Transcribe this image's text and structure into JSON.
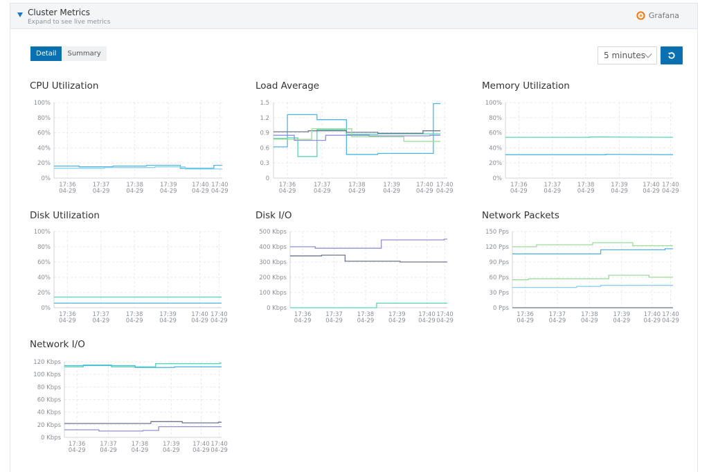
{
  "header": {
    "title": "Cluster Metrics",
    "subtitle": "Expand to see live metrics",
    "brand": "Grafana"
  },
  "tabs": [
    {
      "label": "Detail",
      "active": true
    },
    {
      "label": "Summary",
      "active": false
    }
  ],
  "time_range": {
    "selected": "5 minutes"
  },
  "colors": {
    "accent": "#0a70b0",
    "series_blue": "#4fb6e0",
    "series_teal": "#55d6b8",
    "series_green": "#9edb9a",
    "series_purple": "#8f8fd8",
    "series_slate": "#6b7490",
    "series_lightblue": "#8fd1ec"
  },
  "x_ticks": [
    {
      "time": "17:36",
      "date": "04-29"
    },
    {
      "time": "17:37",
      "date": "04-29"
    },
    {
      "time": "17:38",
      "date": "04-29"
    },
    {
      "time": "17:39",
      "date": "04-29"
    },
    {
      "time": "17:40",
      "date": "04-29"
    },
    {
      "time": "17:40",
      "date": "04-29"
    }
  ],
  "chart_data": [
    {
      "id": "cpu",
      "title": "CPU Utilization",
      "type": "line",
      "y_ticks": [
        "100%",
        "80%",
        "60%",
        "40%",
        "20%",
        "0%"
      ],
      "ylim": [
        0,
        100
      ],
      "series": [
        {
          "color": "#4fb6e0",
          "points": [
            [
              0,
              16
            ],
            [
              0.15,
              16
            ],
            [
              0.15,
              15
            ],
            [
              0.35,
              15
            ],
            [
              0.35,
              16
            ],
            [
              0.55,
              16
            ],
            [
              0.55,
              17
            ],
            [
              0.75,
              17
            ],
            [
              0.75,
              13
            ],
            [
              0.95,
              13
            ],
            [
              0.95,
              17
            ],
            [
              1,
              17
            ]
          ]
        },
        {
          "color": "#8fd1ec",
          "points": [
            [
              0,
              13
            ],
            [
              0.3,
              13
            ],
            [
              0.3,
              14
            ],
            [
              0.6,
              14
            ],
            [
              0.6,
              15
            ],
            [
              0.78,
              15
            ],
            [
              0.78,
              12
            ],
            [
              1,
              12
            ]
          ]
        }
      ]
    },
    {
      "id": "load",
      "title": "Load Average",
      "type": "line",
      "y_ticks": [
        "1.5",
        "1.2",
        "0.9",
        "0.6",
        "0.3",
        "0"
      ],
      "ylim": [
        0,
        1.5
      ],
      "series": [
        {
          "color": "#4fb6e0",
          "points": [
            [
              0,
              0.62
            ],
            [
              0.08,
              0.62
            ],
            [
              0.08,
              1.26
            ],
            [
              0.14,
              1.26
            ],
            [
              0.14,
              1.26
            ],
            [
              0.25,
              1.26
            ],
            [
              0.25,
              1.16
            ],
            [
              0.37,
              1.16
            ],
            [
              0.37,
              1.16
            ],
            [
              0.42,
              1.16
            ],
            [
              0.42,
              0.47
            ],
            [
              0.6,
              0.47
            ],
            [
              0.6,
              0.49
            ],
            [
              0.92,
              0.49
            ],
            [
              0.92,
              1.48
            ],
            [
              0.96,
              1.48
            ]
          ]
        },
        {
          "color": "#55d6b8",
          "points": [
            [
              0,
              0.79
            ],
            [
              0.08,
              0.79
            ],
            [
              0.08,
              0.8
            ],
            [
              0.14,
              0.8
            ],
            [
              0.14,
              0.43
            ],
            [
              0.25,
              0.43
            ],
            [
              0.25,
              0.96
            ],
            [
              0.42,
              0.96
            ],
            [
              0.42,
              0.87
            ],
            [
              0.6,
              0.87
            ],
            [
              0.6,
              0.88
            ],
            [
              0.96,
              0.88
            ]
          ]
        },
        {
          "color": "#6b7490",
          "points": [
            [
              0,
              0.92
            ],
            [
              0.2,
              0.92
            ],
            [
              0.2,
              0.94
            ],
            [
              0.42,
              0.94
            ],
            [
              0.42,
              0.91
            ],
            [
              0.6,
              0.91
            ],
            [
              0.6,
              0.89
            ],
            [
              0.86,
              0.89
            ],
            [
              0.86,
              0.94
            ],
            [
              0.96,
              0.94
            ]
          ]
        },
        {
          "color": "#9edb9a",
          "points": [
            [
              0,
              0.77
            ],
            [
              0.22,
              0.77
            ],
            [
              0.22,
              0.98
            ],
            [
              0.45,
              0.98
            ],
            [
              0.45,
              0.82
            ],
            [
              0.75,
              0.82
            ],
            [
              0.75,
              0.73
            ],
            [
              0.96,
              0.73
            ]
          ]
        },
        {
          "color": "#8f8fd8",
          "points": [
            [
              0,
              0.85
            ],
            [
              0.12,
              0.85
            ],
            [
              0.12,
              0.75
            ],
            [
              0.3,
              0.75
            ],
            [
              0.3,
              0.85
            ],
            [
              0.55,
              0.85
            ],
            [
              0.55,
              0.84
            ],
            [
              0.9,
              0.84
            ],
            [
              0.9,
              0.85
            ],
            [
              0.96,
              0.85
            ]
          ]
        }
      ]
    },
    {
      "id": "memory",
      "title": "Memory Utilization",
      "type": "line",
      "y_ticks": [
        "100%",
        "80%",
        "60%",
        "40%",
        "20%",
        "0%"
      ],
      "ylim": [
        0,
        100
      ],
      "series": [
        {
          "color": "#55d6b8",
          "points": [
            [
              0,
              54
            ],
            [
              0.5,
              54
            ],
            [
              0.5,
              54.5
            ],
            [
              1,
              54
            ]
          ]
        },
        {
          "color": "#4fb6e0",
          "points": [
            [
              0,
              31
            ],
            [
              0.6,
              31
            ],
            [
              0.6,
              31.5
            ],
            [
              1,
              31
            ]
          ]
        }
      ]
    },
    {
      "id": "disk",
      "title": "Disk Utilization",
      "type": "line",
      "y_ticks": [
        "100%",
        "80%",
        "60%",
        "40%",
        "20%",
        "0%"
      ],
      "ylim": [
        0,
        100
      ],
      "series": [
        {
          "color": "#55d6b8",
          "points": [
            [
              0,
              14
            ],
            [
              1,
              14
            ]
          ]
        },
        {
          "color": "#4fb6e0",
          "points": [
            [
              0,
              6
            ],
            [
              1,
              6
            ]
          ]
        }
      ]
    },
    {
      "id": "diskio",
      "title": "Disk I/O",
      "type": "line",
      "y_ticks": [
        "500 Kbps",
        "400 Kbps",
        "300 Kbps",
        "200 Kbps",
        "100 Kbps",
        "0 Kbps"
      ],
      "ylim": [
        0,
        500
      ],
      "series": [
        {
          "color": "#8f8fd8",
          "points": [
            [
              0,
              400
            ],
            [
              0.16,
              400
            ],
            [
              0.16,
              390
            ],
            [
              0.58,
              390
            ],
            [
              0.58,
              445
            ],
            [
              0.98,
              445
            ],
            [
              0.98,
              450
            ],
            [
              1,
              450
            ]
          ]
        },
        {
          "color": "#6b7490",
          "points": [
            [
              0,
              340
            ],
            [
              0.2,
              340
            ],
            [
              0.2,
              345
            ],
            [
              0.35,
              345
            ],
            [
              0.35,
              305
            ],
            [
              0.7,
              305
            ],
            [
              0.7,
              300
            ],
            [
              1,
              300
            ]
          ]
        },
        {
          "color": "#55d6b8",
          "points": [
            [
              0,
              0
            ],
            [
              0.55,
              0
            ],
            [
              0.55,
              30
            ],
            [
              1,
              30
            ]
          ]
        }
      ]
    },
    {
      "id": "netpkt",
      "title": "Network Packets",
      "type": "line",
      "y_ticks": [
        "150 Pps",
        "120 Pps",
        "90 Pps",
        "60 Pps",
        "30 Pps",
        "0 Pps"
      ],
      "ylim": [
        0,
        150
      ],
      "series": [
        {
          "color": "#9edb9a",
          "points": [
            [
              0,
              120
            ],
            [
              0.15,
              120
            ],
            [
              0.15,
              124
            ],
            [
              0.5,
              124
            ],
            [
              0.5,
              128
            ],
            [
              0.75,
              128
            ],
            [
              0.75,
              122
            ],
            [
              1,
              122
            ]
          ]
        },
        {
          "color": "#4fb6e0",
          "points": [
            [
              0,
              106
            ],
            [
              0.55,
              106
            ],
            [
              0.55,
              114
            ],
            [
              0.95,
              114
            ],
            [
              0.95,
              116
            ],
            [
              1,
              116
            ]
          ]
        },
        {
          "color": "#9edb9a",
          "points": [
            [
              0,
              55
            ],
            [
              0.1,
              55
            ],
            [
              0.1,
              57
            ],
            [
              0.6,
              57
            ],
            [
              0.6,
              64
            ],
            [
              0.85,
              64
            ],
            [
              0.85,
              60
            ],
            [
              1,
              60
            ]
          ]
        },
        {
          "color": "#8fd1ec",
          "points": [
            [
              0,
              40
            ],
            [
              0.4,
              40
            ],
            [
              0.4,
              42
            ],
            [
              0.55,
              42
            ],
            [
              0.55,
              44
            ],
            [
              1,
              44
            ]
          ]
        },
        {
          "color": "#6b7490",
          "points": [
            [
              0,
              0
            ],
            [
              1,
              0
            ]
          ]
        }
      ]
    },
    {
      "id": "netio",
      "title": "Network I/O",
      "type": "line",
      "y_ticks": [
        "120 Kbps",
        "100 Kbps",
        "80 Kbps",
        "60 Kbps",
        "40 Kbps",
        "20 Kbps",
        "0 Kbps"
      ],
      "ylim": [
        0,
        120
      ],
      "series": [
        {
          "color": "#55d6b8",
          "points": [
            [
              0,
              112
            ],
            [
              0.12,
              112
            ],
            [
              0.12,
              115
            ],
            [
              0.3,
              115
            ],
            [
              0.3,
              112
            ],
            [
              0.58,
              112
            ],
            [
              0.58,
              117
            ],
            [
              0.99,
              117
            ],
            [
              0.99,
              118
            ],
            [
              1,
              118
            ]
          ]
        },
        {
          "color": "#4fb6e0",
          "points": [
            [
              0,
              114
            ],
            [
              0.45,
              114
            ],
            [
              0.45,
              111
            ],
            [
              0.7,
              111
            ],
            [
              0.7,
              112
            ],
            [
              1,
              112
            ]
          ]
        },
        {
          "color": "#6b7490",
          "points": [
            [
              0,
              22
            ],
            [
              0.55,
              22
            ],
            [
              0.55,
              25
            ],
            [
              0.75,
              25
            ],
            [
              0.75,
              23
            ],
            [
              0.98,
              23
            ],
            [
              0.98,
              24
            ],
            [
              1,
              24
            ]
          ]
        },
        {
          "color": "#8f8fd8",
          "points": [
            [
              0,
              12
            ],
            [
              0.22,
              12
            ],
            [
              0.22,
              10
            ],
            [
              0.5,
              10
            ],
            [
              0.5,
              11
            ],
            [
              0.6,
              11
            ],
            [
              0.6,
              17
            ],
            [
              1,
              17
            ]
          ]
        }
      ]
    }
  ]
}
